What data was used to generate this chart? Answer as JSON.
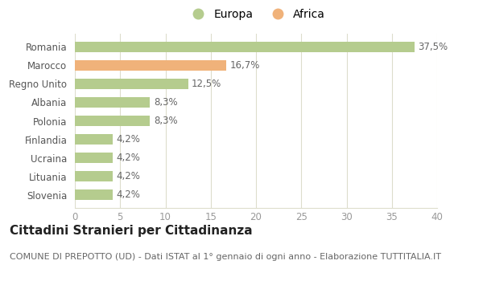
{
  "categories": [
    "Slovenia",
    "Lituania",
    "Ucraina",
    "Finlandia",
    "Polonia",
    "Albania",
    "Regno Unito",
    "Marocco",
    "Romania"
  ],
  "values": [
    4.2,
    4.2,
    4.2,
    4.2,
    8.3,
    8.3,
    12.5,
    16.7,
    37.5
  ],
  "labels": [
    "4,2%",
    "4,2%",
    "4,2%",
    "4,2%",
    "8,3%",
    "8,3%",
    "12,5%",
    "16,7%",
    "37,5%"
  ],
  "colors": [
    "#b5cc8e",
    "#b5cc8e",
    "#b5cc8e",
    "#b5cc8e",
    "#b5cc8e",
    "#b5cc8e",
    "#b5cc8e",
    "#f0b27a",
    "#b5cc8e"
  ],
  "legend_labels": [
    "Europa",
    "Africa"
  ],
  "legend_colors": [
    "#b5cc8e",
    "#f0b27a"
  ],
  "title": "Cittadini Stranieri per Cittadinanza",
  "subtitle": "COMUNE DI PREPOTTO (UD) - Dati ISTAT al 1° gennaio di ogni anno - Elaborazione TUTTITALIA.IT",
  "xlim": [
    0,
    40
  ],
  "xticks": [
    0,
    5,
    10,
    15,
    20,
    25,
    30,
    35,
    40
  ],
  "bg_color": "#ffffff",
  "grid_color": "#ddddcc",
  "title_fontsize": 11,
  "subtitle_fontsize": 8,
  "label_fontsize": 8.5,
  "tick_fontsize": 8.5,
  "legend_fontsize": 10,
  "bar_height": 0.55
}
